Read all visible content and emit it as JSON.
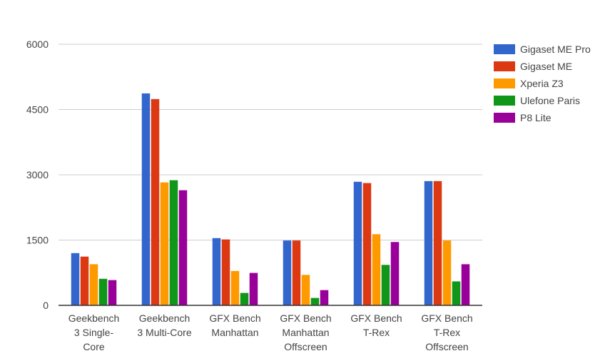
{
  "chart_data": {
    "type": "bar",
    "title": "",
    "xlabel": "",
    "ylabel": "",
    "ylim": [
      0,
      6000
    ],
    "yticks": [
      0,
      1500,
      3000,
      4500,
      6000
    ],
    "grid": true,
    "legend_position": "right",
    "categories": [
      [
        "Geekbench",
        "3 Single-",
        "Core"
      ],
      [
        "Geekbench",
        "3 Multi-Core"
      ],
      [
        "GFX Bench",
        "Manhattan"
      ],
      [
        "GFX Bench",
        "Manhattan",
        "Offscreen"
      ],
      [
        "GFX Bench",
        "T-Rex"
      ],
      [
        "GFX Bench",
        "T-Rex",
        "Offscreen"
      ]
    ],
    "series": [
      {
        "name": "Gigaset ME Pro",
        "color": "#3366cc",
        "values": [
          1200,
          4870,
          1545,
          1490,
          2840,
          2855
        ]
      },
      {
        "name": "Gigaset ME",
        "color": "#dc3912",
        "values": [
          1120,
          4740,
          1515,
          1490,
          2810,
          2855
        ]
      },
      {
        "name": "Xperia Z3",
        "color": "#ff9900",
        "values": [
          945,
          2825,
          790,
          700,
          1635,
          1490
        ]
      },
      {
        "name": "Ulefone Paris",
        "color": "#109618",
        "values": [
          610,
          2875,
          285,
          170,
          930,
          550
        ]
      },
      {
        "name": "P8 Lite",
        "color": "#990099",
        "values": [
          580,
          2645,
          745,
          350,
          1455,
          945
        ]
      }
    ]
  }
}
